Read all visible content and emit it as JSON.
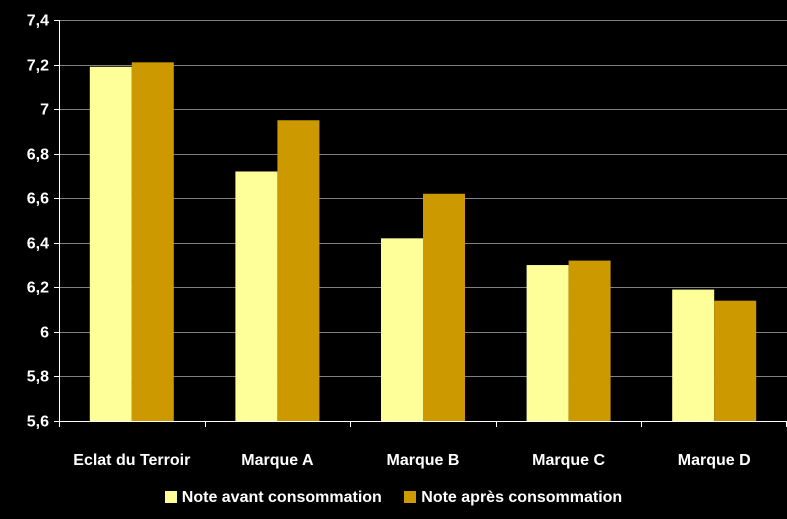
{
  "chart_data": {
    "type": "bar",
    "categories": [
      "Eclat du Terroir",
      "Marque A",
      "Marque B",
      "Marque C",
      "Marque D"
    ],
    "series": [
      {
        "name": "Note avant consommation",
        "color": "#ffff99",
        "values": [
          7.19,
          6.72,
          6.42,
          6.3,
          6.19
        ]
      },
      {
        "name": "Note après consommation",
        "color": "#cc9900",
        "values": [
          7.21,
          6.95,
          6.62,
          6.32,
          6.14
        ]
      }
    ],
    "ylim": [
      5.6,
      7.4
    ],
    "yticks": [
      "5,6",
      "5,8",
      "6",
      "6,2",
      "6,4",
      "6,6",
      "6,8",
      "7",
      "7,2",
      "7,4"
    ],
    "ytick_values": [
      5.6,
      5.8,
      6.0,
      6.2,
      6.4,
      6.6,
      6.8,
      7.0,
      7.2,
      7.4
    ],
    "grid": true,
    "legend_position": "bottom",
    "background": "#000000",
    "axis_color": "#ffffff",
    "gridline_color": "#808080"
  }
}
